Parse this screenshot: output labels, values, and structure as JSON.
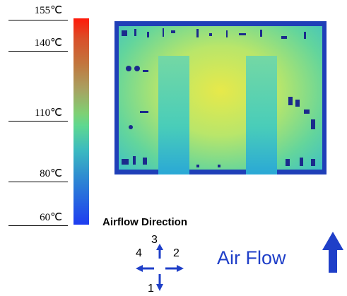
{
  "scale": {
    "labels": [
      "155℃",
      "140℃",
      "110℃",
      "80℃",
      "60℃"
    ]
  },
  "legend": {
    "title": "Airflow Direction",
    "directions": {
      "up": "3",
      "down": "1",
      "left": "4",
      "right": "2"
    }
  },
  "airflow": {
    "label": "Air Flow"
  },
  "colors": {
    "arrow": "#1f3fc8",
    "hot": "#ff1a0a",
    "cold": "#1e3cf0"
  },
  "icons": {
    "airflow_arrow": "up-arrow-icon",
    "direction_cross": "four-way-arrow-icon"
  }
}
